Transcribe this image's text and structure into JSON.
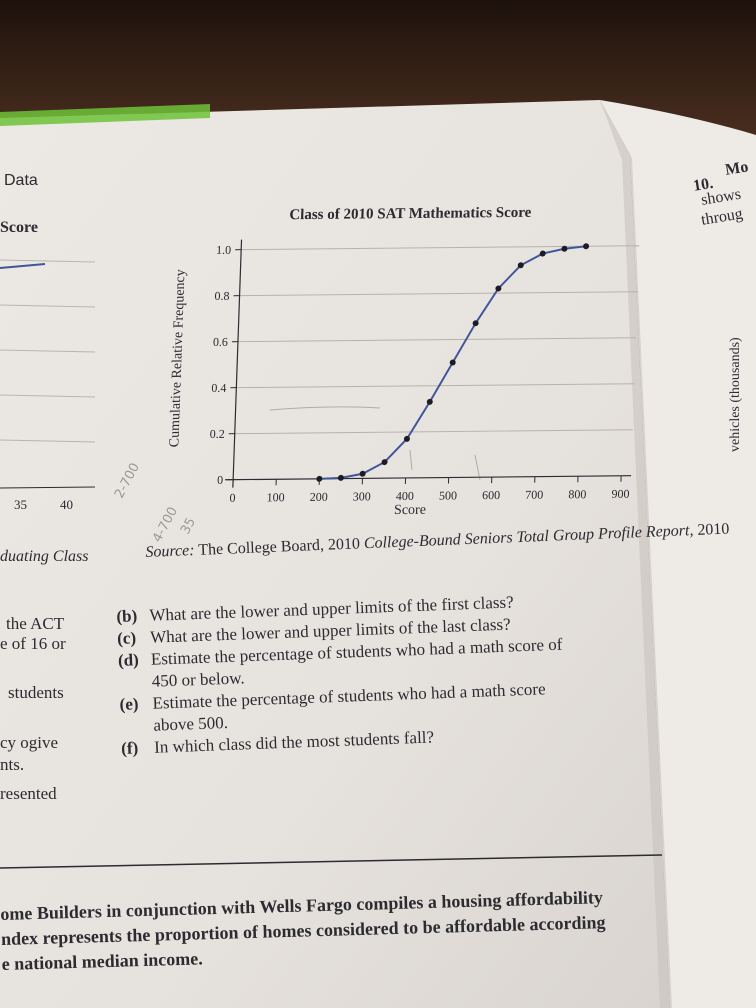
{
  "colors": {
    "page": "#e9e5e1",
    "text": "#2b2b30",
    "curve": "#40559a",
    "point": "#1c1c22",
    "table": "#3a2418"
  },
  "left_page": {
    "header": "Data",
    "score_label": "Score",
    "ticks": [
      "35",
      "40"
    ],
    "graduating_class": "duating Class",
    "lines": [
      "the ACT",
      "e of 16 or",
      "students",
      "cy ogive",
      "nts.",
      "resented"
    ]
  },
  "right_page": {
    "exercise_number": "10.",
    "exercise_words": [
      "Mo",
      "shows",
      "throug"
    ],
    "axis_fragment": "vehicles (thousands)"
  },
  "chart_data": {
    "type": "line",
    "title": "Class of 2010 SAT Mathematics Score",
    "xlabel": "Score",
    "ylabel": "Cumulative Relative Frequency",
    "x_ticks": [
      "0",
      "100",
      "200",
      "300",
      "400",
      "500",
      "600",
      "700",
      "800",
      "900"
    ],
    "y_ticks": [
      "0",
      "0.2",
      "0.4",
      "0.6",
      "0.8",
      "1.0"
    ],
    "xlim": [
      0,
      900
    ],
    "ylim": [
      0,
      1.0
    ],
    "grid": true,
    "series": [
      {
        "x": [
          200,
          250,
          300,
          350,
          400,
          450,
          500,
          550,
          600,
          650,
          700,
          750,
          800
        ],
        "y": [
          0.0,
          0.003,
          0.02,
          0.07,
          0.17,
          0.33,
          0.5,
          0.67,
          0.82,
          0.92,
          0.97,
          0.99,
          1.0
        ]
      }
    ]
  },
  "source": {
    "label": "Source:",
    "text": "The College Board, 2010",
    "italic": "College-Bound Seniors Total Group Profile Report,",
    "year": "2010"
  },
  "questions": [
    {
      "label": "(b)",
      "text": "What are the lower and upper limits of the first class?"
    },
    {
      "label": "(c)",
      "text": "What are the lower and upper limits of the last class?"
    },
    {
      "label": "(d)",
      "text": "Estimate the percentage of students who had a math score of"
    },
    {
      "label": "",
      "text": "450 or below."
    },
    {
      "label": "(e)",
      "text": "Estimate the percentage of students who had a math score"
    },
    {
      "label": "",
      "text": "above 500."
    },
    {
      "label": "(f)",
      "text": "In which class did the most students fall?"
    }
  ],
  "bottom_paragraph": [
    "ome Builders in conjunction with Wells Fargo compiles a housing affordability",
    "ndex represents the proportion of homes considered to be affordable according",
    "e national median income."
  ],
  "pencil_marks": [
    "2-700",
    "4-700",
    "35"
  ]
}
